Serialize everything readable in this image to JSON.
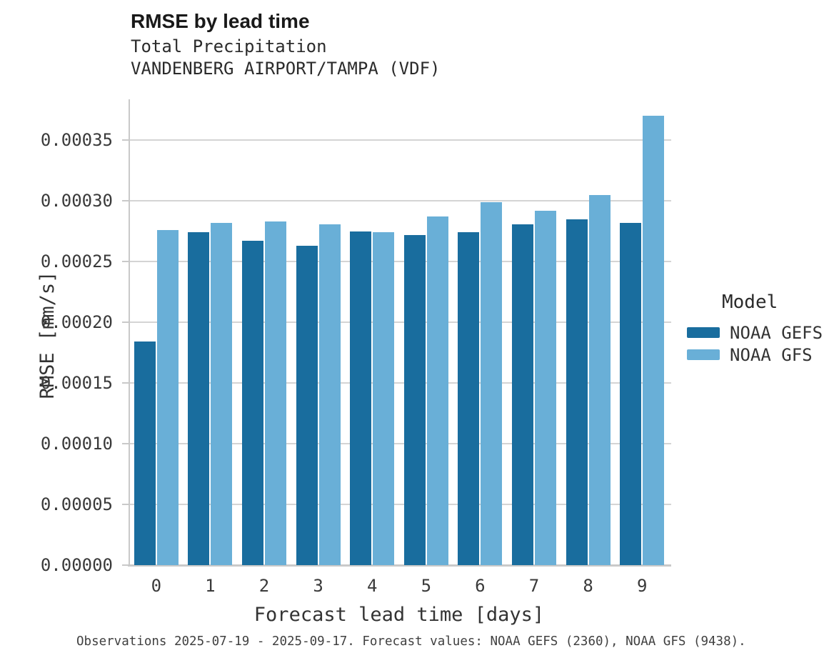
{
  "header": {
    "title": "RMSE by lead time",
    "subtitle": "Total Precipitation",
    "station": "VANDENBERG AIRPORT/TAMPA (VDF)"
  },
  "caption": "Observations 2025-07-19 - 2025-09-17. Forecast values: NOAA GEFS (2360), NOAA GFS (9438).",
  "legend": {
    "title": "Model",
    "entries": [
      {
        "label": "NOAA GEFS",
        "color": "#196d9e"
      },
      {
        "label": "NOAA GFS",
        "color": "#69afd7"
      }
    ]
  },
  "colors": {
    "gefs_dark_blue": "#196d9e",
    "gfs_light_blue": "#69afd7",
    "gridline": "#d4d4d4",
    "spine": "#c9c9c9",
    "text_dark": "#191919",
    "text_tick": "#3a3a3a"
  },
  "chart_data": {
    "type": "bar",
    "title": "RMSE by lead time",
    "subtitle": "Total Precipitation",
    "station": "VANDENBERG AIRPORT/TAMPA (VDF)",
    "xlabel": "Forecast lead time [days]",
    "ylabel": "RMSE [mm/s]",
    "categories": [
      "0",
      "1",
      "2",
      "3",
      "4",
      "5",
      "6",
      "7",
      "8",
      "9"
    ],
    "series": [
      {
        "name": "NOAA GEFS",
        "color": "#196d9e",
        "values": [
          0.000184,
          0.000274,
          0.000267,
          0.000263,
          0.000275,
          0.000272,
          0.000274,
          0.000281,
          0.000285,
          0.000282
        ]
      },
      {
        "name": "NOAA GFS",
        "color": "#69afd7",
        "values": [
          0.000276,
          0.000282,
          0.000283,
          0.000281,
          0.000274,
          0.000287,
          0.000299,
          0.000292,
          0.000305,
          0.00037
        ]
      }
    ],
    "ylim": [
      0,
      0.0003837
    ],
    "yticks": [
      0.0,
      5e-05,
      0.0001,
      0.00015,
      0.0002,
      0.00025,
      0.0003,
      0.00035
    ],
    "ytick_labels": [
      "0.00000",
      "0.00005",
      "0.00010",
      "0.00015",
      "0.00020",
      "0.00025",
      "0.00030",
      "0.00035"
    ],
    "grid": "horizontal",
    "legend_title": "Model",
    "legend_position": "center-right"
  }
}
